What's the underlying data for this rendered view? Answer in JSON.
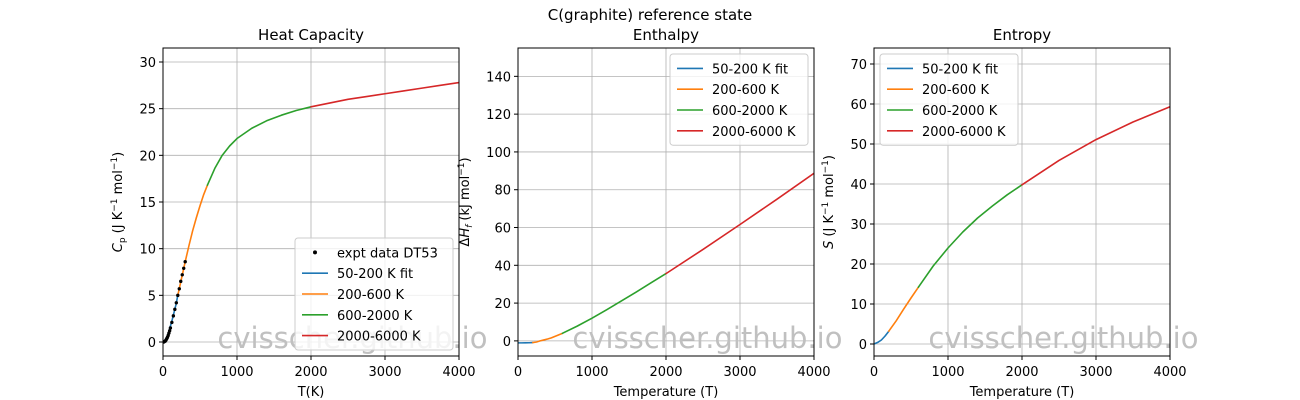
{
  "figure": {
    "title": "C(graphite) reference state",
    "watermark": "cvisscher.github.io"
  },
  "colors": {
    "fit": "#1f77b4",
    "low": "#ff7f0e",
    "mid": "#2ca02c",
    "high": "#d62728",
    "expt": "#000000"
  },
  "chart_data": [
    {
      "type": "line",
      "title": "Heat Capacity",
      "xlabel": "T(K)",
      "ylabel": "C_p (J K^-1 mol^-1)",
      "xlim": [
        0,
        4000
      ],
      "ylim": [
        -1.5,
        31.5
      ],
      "xticks": [
        0,
        1000,
        2000,
        3000,
        4000
      ],
      "yticks": [
        0,
        5,
        10,
        15,
        20,
        25,
        30
      ],
      "grid": true,
      "legend": "lower-right",
      "legend_entries": [
        "expt data DT53",
        "50-200 K fit",
        "200-600 K",
        "600-2000 K",
        "2000-6000 K"
      ],
      "series": [
        {
          "name": "50-200 K fit",
          "x": [
            0,
            25,
            50,
            75,
            100,
            125,
            150,
            175,
            200
          ],
          "y": [
            0,
            0.2,
            0.5,
            1.0,
            1.7,
            2.4,
            3.2,
            4.0,
            5.0
          ]
        },
        {
          "name": "200-600 K",
          "x": [
            200,
            250,
            300,
            350,
            400,
            450,
            500,
            550,
            600
          ],
          "y": [
            5.0,
            6.8,
            8.6,
            10.3,
            11.9,
            13.3,
            14.6,
            15.8,
            16.8
          ]
        },
        {
          "name": "600-2000 K",
          "x": [
            600,
            700,
            800,
            900,
            1000,
            1200,
            1400,
            1600,
            1800,
            2000
          ],
          "y": [
            16.8,
            18.6,
            20.0,
            21.0,
            21.8,
            22.9,
            23.7,
            24.3,
            24.8,
            25.2
          ]
        },
        {
          "name": "2000-6000 K",
          "x": [
            2000,
            2250,
            2500,
            2750,
            3000,
            3250,
            3500,
            3750,
            4000
          ],
          "y": [
            25.2,
            25.6,
            26.0,
            26.3,
            26.6,
            26.9,
            27.2,
            27.5,
            27.8
          ]
        },
        {
          "name": "expt data DT53",
          "x": [
            10,
            20,
            30,
            40,
            50,
            60,
            70,
            80,
            90,
            100,
            120,
            140,
            160,
            180,
            200,
            220,
            240,
            260,
            280,
            300
          ],
          "y": [
            0.0,
            0.05,
            0.1,
            0.2,
            0.35,
            0.5,
            0.7,
            0.95,
            1.2,
            1.5,
            2.1,
            2.8,
            3.5,
            4.2,
            5.0,
            5.7,
            6.5,
            7.2,
            7.9,
            8.6
          ]
        }
      ]
    },
    {
      "type": "line",
      "title": "Enthalpy",
      "xlabel": "Temperature (T)",
      "ylabel": "ΔH_f (kJ mol^-1)",
      "xlim": [
        0,
        4000
      ],
      "ylim": [
        -8,
        155
      ],
      "xticks": [
        0,
        1000,
        2000,
        3000,
        4000
      ],
      "yticks": [
        0,
        20,
        40,
        60,
        80,
        100,
        120,
        140
      ],
      "grid": true,
      "legend": "upper-right",
      "legend_entries": [
        "50-200 K fit",
        "200-600 K",
        "600-2000 K",
        "2000-6000 K"
      ],
      "series": [
        {
          "name": "50-200 K fit",
          "x": [
            0,
            50,
            100,
            150,
            200
          ],
          "y": [
            -1.05,
            -1.05,
            -1.03,
            -0.98,
            -0.9
          ]
        },
        {
          "name": "200-600 K",
          "x": [
            200,
            250,
            298,
            350,
            400,
            450,
            500,
            550,
            600
          ],
          "y": [
            -0.9,
            -0.6,
            0.0,
            0.5,
            1.0,
            1.6,
            2.4,
            3.2,
            4.0
          ]
        },
        {
          "name": "600-2000 K",
          "x": [
            600,
            800,
            1000,
            1200,
            1400,
            1600,
            1800,
            2000
          ],
          "y": [
            4.0,
            7.8,
            12.0,
            16.5,
            21.2,
            25.9,
            30.8,
            35.6
          ]
        },
        {
          "name": "2000-6000 K",
          "x": [
            2000,
            2500,
            3000,
            3500,
            4000
          ],
          "y": [
            35.6,
            48.4,
            61.6,
            75.0,
            88.7
          ]
        }
      ]
    },
    {
      "type": "line",
      "title": "Entropy",
      "xlabel": "Temperature (T)",
      "ylabel": "S (J K^-1 mol^-1)",
      "xlim": [
        0,
        4000
      ],
      "ylim": [
        -3,
        74
      ],
      "xticks": [
        0,
        1000,
        2000,
        3000,
        4000
      ],
      "yticks": [
        0,
        10,
        20,
        30,
        40,
        50,
        60,
        70
      ],
      "grid": true,
      "legend": "upper-left",
      "legend_entries": [
        "50-200 K fit",
        "200-600 K",
        "600-2000 K",
        "2000-6000 K"
      ],
      "series": [
        {
          "name": "50-200 K fit",
          "x": [
            0,
            50,
            100,
            150,
            200
          ],
          "y": [
            0,
            0.4,
            1.0,
            2.0,
            3.2
          ]
        },
        {
          "name": "200-600 K",
          "x": [
            200,
            300,
            400,
            500,
            600
          ],
          "y": [
            3.2,
            5.8,
            8.7,
            11.5,
            14.2
          ]
        },
        {
          "name": "600-2000 K",
          "x": [
            600,
            800,
            1000,
            1200,
            1400,
            1600,
            1800,
            2000
          ],
          "y": [
            14.2,
            19.5,
            24.0,
            28.0,
            31.5,
            34.5,
            37.3,
            39.8
          ]
        },
        {
          "name": "2000-6000 K",
          "x": [
            2000,
            2500,
            3000,
            3500,
            4000
          ],
          "y": [
            39.8,
            45.9,
            51.1,
            55.5,
            59.3
          ]
        }
      ]
    }
  ]
}
